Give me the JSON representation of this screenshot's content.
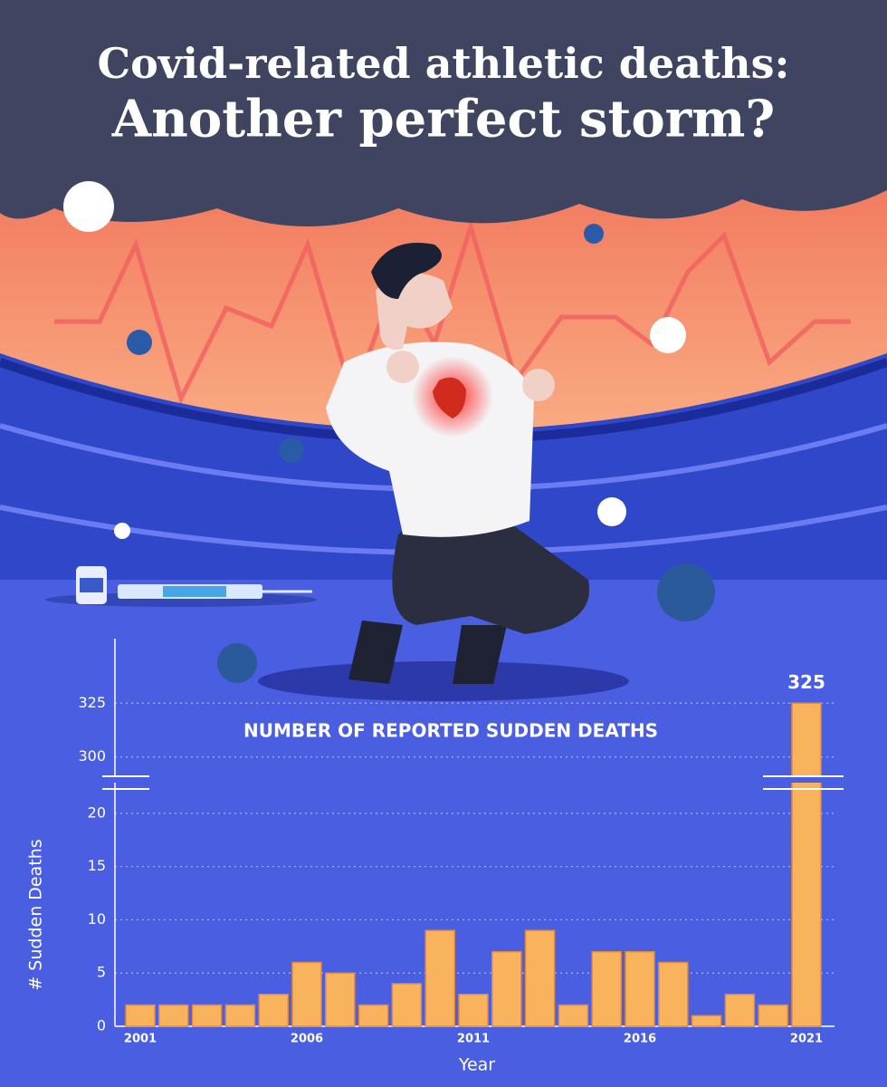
{
  "title": "Covid-related athletic deaths:",
  "subtitle": "Another perfect storm?",
  "chart_data": {
    "type": "bar",
    "title": "NUMBER OF REPORTED SUDDEN DEATHS",
    "ylabel": "# Sudden Deaths",
    "xlabel": "Year",
    "categories": [
      "2001",
      null,
      null,
      null,
      null,
      "2006",
      null,
      null,
      null,
      null,
      "2011",
      null,
      null,
      null,
      null,
      "2016",
      null,
      null,
      null,
      null,
      "2021"
    ],
    "values": [
      2,
      2,
      2,
      2,
      3,
      6,
      5,
      2,
      4,
      9,
      3,
      7,
      9,
      2,
      7,
      7,
      6,
      1,
      3,
      2,
      325
    ],
    "color": "#f9b35d",
    "ylim": [
      0,
      22.8
    ],
    "yticks": [
      0,
      5,
      10,
      15,
      20
    ],
    "y_break": {
      "ylim": [
        291,
        355
      ],
      "yticks": [
        300,
        325
      ]
    },
    "grid": true
  }
}
